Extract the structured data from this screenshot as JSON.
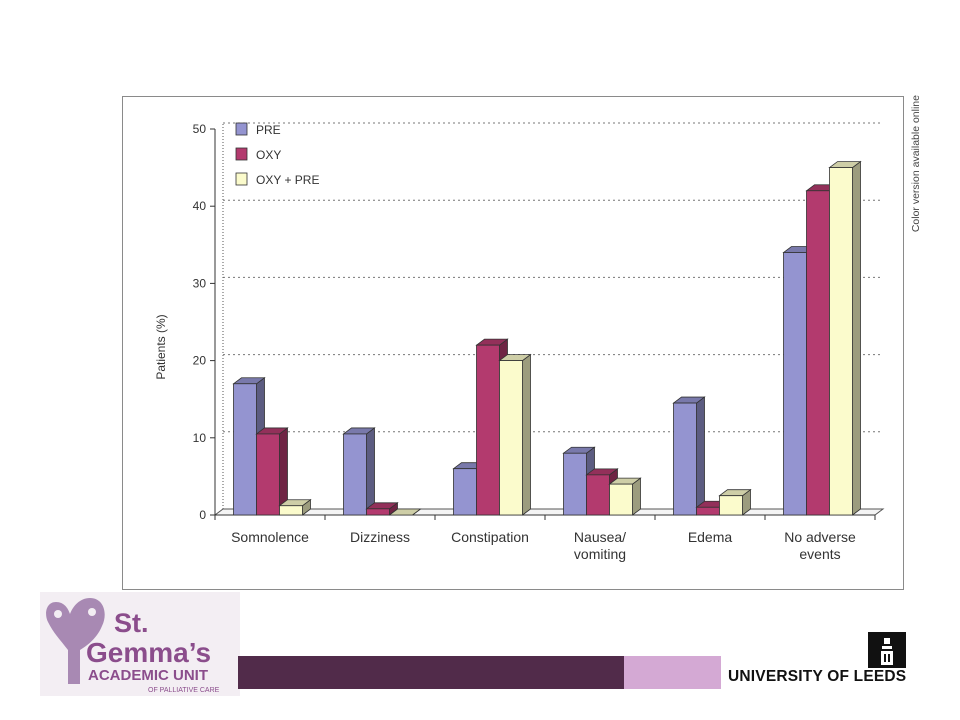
{
  "chart_data": {
    "type": "bar",
    "style": "3d-clustered",
    "categories": [
      "Somnolence",
      "Dizziness",
      "Constipation",
      "Nausea/ vomiting",
      "Edema",
      "No adverse events"
    ],
    "category_lines": [
      [
        "Somnolence"
      ],
      [
        "Dizziness"
      ],
      [
        "Constipation"
      ],
      [
        "Nausea/",
        "vomiting"
      ],
      [
        "Edema"
      ],
      [
        "No adverse",
        "events"
      ]
    ],
    "series": [
      {
        "name": "PRE",
        "color": "#9494d0",
        "values": [
          17,
          10.5,
          6,
          8,
          14.5,
          34
        ]
      },
      {
        "name": "OXY",
        "color": "#b33a6e",
        "values": [
          10.5,
          0.8,
          22,
          5.2,
          1,
          42
        ]
      },
      {
        "name": "OXY + PRE",
        "color": "#fbfbcc",
        "values": [
          1.2,
          0,
          20,
          4,
          2.5,
          45
        ]
      }
    ],
    "ylabel": "Patients (%)",
    "xlabel": "",
    "ylim": [
      0,
      50
    ],
    "yticks": [
      0,
      10,
      20,
      30,
      40,
      50
    ],
    "grid": true,
    "legend_position": "top-left",
    "side_note": "Color version available online"
  },
  "logo": {
    "line1": "St.",
    "line2": "Gemma’s",
    "line3": "ACADEMIC UNIT",
    "line4": "OF PALLIATIVE CARE",
    "color": "#8b4d8c"
  },
  "university": {
    "name": "UNIVERSITY OF LEEDS"
  },
  "colors": {
    "band_dark": "#512b4a",
    "band_light": "#d4a9d4"
  }
}
